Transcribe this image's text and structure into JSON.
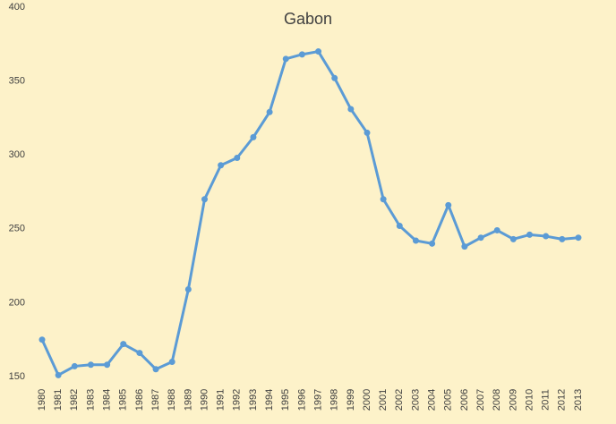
{
  "chart_data": {
    "type": "line",
    "title": "Gabon",
    "categories": [
      "1980",
      "1981",
      "1982",
      "1983",
      "1984",
      "1985",
      "1986",
      "1987",
      "1988",
      "1989",
      "1990",
      "1991",
      "1992",
      "1993",
      "1994",
      "1995",
      "1996",
      "1997",
      "1998",
      "1999",
      "2000",
      "2001",
      "2002",
      "2003",
      "2004",
      "2005",
      "2006",
      "2007",
      "2008",
      "2009",
      "2010",
      "2011",
      "2012",
      "2013"
    ],
    "values": [
      175,
      151,
      157,
      158,
      158,
      172,
      166,
      155,
      160,
      209,
      270,
      293,
      298,
      312,
      329,
      365,
      368,
      370,
      352,
      331,
      315,
      270,
      252,
      242,
      240,
      266,
      238,
      244,
      249,
      243,
      246,
      245,
      243,
      244
    ],
    "color": "#5b9bd5",
    "ylim": [
      150,
      400
    ],
    "yticks": [
      150,
      200,
      250,
      300,
      350,
      400
    ]
  }
}
